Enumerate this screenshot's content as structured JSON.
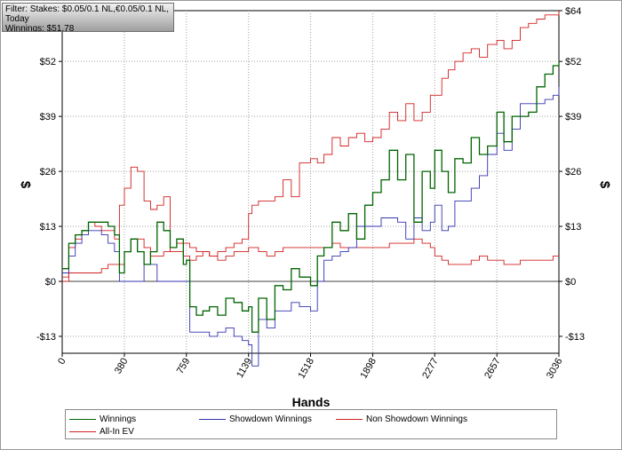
{
  "info": {
    "filter": "Filter: Stakes: $0.05/0.1 NL,€0.05/0.1 NL,",
    "period": "Today",
    "winnings": "Winnings: $51.78"
  },
  "colors": {
    "winnings": "#006400",
    "showdown": "#3333b0",
    "non_showdown": "#d22020",
    "all_in_ev": "#d22020",
    "grid": "#a0a0a0",
    "zero_line": "#000000"
  },
  "chart_data": {
    "type": "line",
    "xlabel": "Hands",
    "ylabel": "$",
    "xlim": [
      0,
      3036
    ],
    "ylim": [
      -17,
      64
    ],
    "x_ticks": [
      0,
      380,
      759,
      1139,
      1518,
      1898,
      2277,
      2657,
      3036
    ],
    "y_ticks": [
      -13,
      0,
      13,
      26,
      39,
      52,
      64
    ],
    "y_tick_labels": [
      "-$13",
      "$0",
      "$13",
      "$26",
      "$39",
      "$52",
      "$64"
    ],
    "grid": true,
    "legend_position": "bottom",
    "series": [
      {
        "name": "Winnings",
        "color": "#006400",
        "x": [
          0,
          40,
          80,
          120,
          160,
          200,
          240,
          280,
          320,
          350,
          380,
          420,
          460,
          500,
          540,
          580,
          620,
          660,
          700,
          740,
          759,
          780,
          820,
          860,
          900,
          950,
          1000,
          1050,
          1100,
          1139,
          1160,
          1200,
          1250,
          1300,
          1350,
          1400,
          1450,
          1518,
          1560,
          1600,
          1650,
          1700,
          1750,
          1800,
          1850,
          1898,
          1950,
          2000,
          2050,
          2100,
          2150,
          2200,
          2250,
          2277,
          2320,
          2360,
          2400,
          2450,
          2500,
          2550,
          2600,
          2657,
          2700,
          2750,
          2800,
          2850,
          2900,
          2950,
          3000,
          3036
        ],
        "values": [
          3,
          9,
          11,
          12,
          14,
          14,
          14,
          13,
          11,
          2,
          7,
          10,
          7,
          4,
          7,
          14,
          12,
          8,
          10,
          4,
          5,
          -6,
          -8,
          -7,
          -6,
          -8,
          -4,
          -5,
          -7,
          -6,
          -12,
          -4,
          -9,
          -1,
          -2,
          3,
          1,
          -1,
          6,
          8,
          14,
          12,
          16,
          10,
          18,
          21,
          24,
          31,
          24,
          30,
          14,
          26,
          22,
          31,
          26,
          21,
          29,
          28,
          34,
          30,
          32,
          40,
          33,
          39,
          39,
          40,
          46,
          49,
          51,
          51.78
        ]
      },
      {
        "name": "Showdown Winnings",
        "color": "#3333b0",
        "x": [
          0,
          40,
          80,
          120,
          160,
          200,
          240,
          280,
          320,
          350,
          380,
          420,
          460,
          500,
          540,
          580,
          620,
          660,
          700,
          740,
          759,
          780,
          820,
          860,
          900,
          950,
          1000,
          1050,
          1100,
          1139,
          1160,
          1200,
          1250,
          1300,
          1350,
          1400,
          1450,
          1518,
          1560,
          1600,
          1650,
          1700,
          1750,
          1800,
          1850,
          1898,
          1950,
          2000,
          2050,
          2100,
          2150,
          2200,
          2250,
          2277,
          2320,
          2360,
          2400,
          2450,
          2500,
          2550,
          2600,
          2657,
          2700,
          2750,
          2800,
          2850,
          2900,
          2950,
          3000,
          3036
        ],
        "values": [
          2,
          6,
          9,
          11,
          12,
          12,
          11,
          9,
          7,
          0,
          0,
          0,
          0,
          4,
          4,
          0,
          0,
          0,
          0,
          0,
          0,
          -12,
          -12,
          -12,
          -13,
          -12,
          -11,
          -13,
          -14,
          -15,
          -20,
          -9,
          -11,
          -7,
          -7,
          -5,
          -6,
          -7,
          0,
          5,
          6,
          7,
          8,
          13,
          13,
          13,
          15,
          15,
          14,
          10,
          15,
          12,
          14,
          18,
          12,
          13,
          19,
          19,
          22,
          25,
          30,
          35,
          31,
          36,
          42,
          42,
          42,
          43,
          44,
          46
        ]
      },
      {
        "name": "Non Showdown Winnings",
        "color": "#d22020",
        "x": [
          0,
          40,
          80,
          120,
          160,
          200,
          240,
          280,
          320,
          350,
          380,
          420,
          460,
          500,
          540,
          580,
          620,
          660,
          700,
          740,
          759,
          780,
          820,
          860,
          900,
          950,
          1000,
          1050,
          1100,
          1139,
          1160,
          1200,
          1250,
          1300,
          1350,
          1400,
          1450,
          1518,
          1560,
          1600,
          1650,
          1700,
          1750,
          1800,
          1850,
          1898,
          1950,
          2000,
          2050,
          2100,
          2150,
          2200,
          2250,
          2277,
          2320,
          2360,
          2400,
          2450,
          2500,
          2550,
          2600,
          2657,
          2700,
          2750,
          2800,
          2850,
          2900,
          2950,
          3000,
          3036
        ],
        "values": [
          1,
          2,
          2,
          2,
          2,
          2,
          3,
          4,
          4,
          4,
          7,
          10,
          10,
          8,
          6,
          6,
          7,
          8,
          9,
          9,
          9,
          8,
          7,
          7,
          6,
          5,
          6,
          7,
          7,
          8,
          8,
          7,
          6,
          7,
          8,
          8,
          8,
          8,
          8,
          8,
          9,
          8,
          8,
          8,
          8,
          8,
          8,
          9,
          9,
          9,
          10,
          9,
          8,
          6,
          5,
          4,
          4,
          4,
          5,
          6,
          5,
          5,
          4,
          4,
          5,
          5,
          5,
          5,
          6,
          6
        ]
      },
      {
        "name": "All-In EV",
        "color": "#d22020",
        "x": [
          0,
          40,
          80,
          120,
          160,
          200,
          240,
          280,
          320,
          350,
          380,
          420,
          460,
          500,
          540,
          580,
          620,
          660,
          700,
          740,
          759,
          780,
          820,
          860,
          900,
          950,
          1000,
          1050,
          1100,
          1139,
          1160,
          1200,
          1250,
          1300,
          1350,
          1400,
          1450,
          1518,
          1560,
          1600,
          1650,
          1700,
          1750,
          1800,
          1850,
          1898,
          1950,
          2000,
          2050,
          2100,
          2150,
          2200,
          2250,
          2277,
          2320,
          2360,
          2400,
          2450,
          2500,
          2550,
          2600,
          2657,
          2700,
          2750,
          2800,
          2850,
          2900,
          2950,
          3000,
          3036
        ],
        "values": [
          0,
          8,
          10,
          12,
          14,
          13,
          12,
          12,
          10,
          18,
          22,
          27,
          26,
          19,
          17,
          18,
          20,
          7,
          7,
          6,
          6,
          5,
          6,
          7,
          6,
          7,
          8,
          9,
          10,
          16,
          18,
          19,
          19,
          20,
          24,
          20,
          28,
          29,
          28,
          30,
          34,
          32,
          34,
          35,
          33,
          34,
          36,
          40,
          38,
          42,
          38,
          40,
          44,
          44,
          48,
          50,
          52,
          54,
          55,
          53,
          56,
          57,
          55,
          57,
          60,
          61,
          62,
          63,
          63,
          64
        ]
      }
    ]
  }
}
